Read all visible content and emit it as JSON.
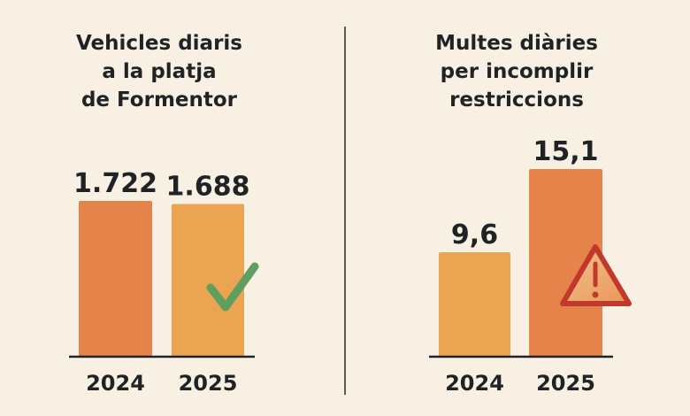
{
  "colors": {
    "background": "#F8F0E3",
    "bar_dark": "#E5834A",
    "bar_light": "#EBA452",
    "check": "#5E9E5E",
    "warning": "#C0392B"
  },
  "chart_data": [
    {
      "type": "bar",
      "title_lines": [
        "Vehicles diaris",
        "a la platja",
        "de Formentor"
      ],
      "categories": [
        "2024",
        "2025"
      ],
      "values": [
        1722,
        1688
      ],
      "value_labels": [
        "1.722",
        "1.688"
      ],
      "bar_colors": [
        "#E5834A",
        "#EBA452"
      ],
      "annotation_icon": "check-icon",
      "xlabel": "",
      "ylabel": "",
      "grid": false
    },
    {
      "type": "bar",
      "title_lines": [
        "Multes diàries",
        "per incomplir",
        "restriccions"
      ],
      "categories": [
        "2024",
        "2025"
      ],
      "values": [
        9.6,
        15.1
      ],
      "value_labels": [
        "9,6",
        "15,1"
      ],
      "bar_colors": [
        "#EBA452",
        "#E5834A"
      ],
      "annotation_icon": "warning-icon",
      "xlabel": "",
      "ylabel": "",
      "grid": false
    }
  ]
}
